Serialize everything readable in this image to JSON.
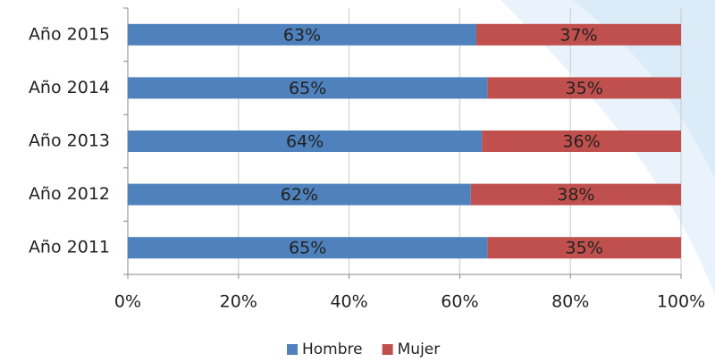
{
  "chart_data": {
    "type": "stacked-bar-horizontal",
    "categories": [
      "Año 2015",
      "Año 2014",
      "Año 2013",
      "Año 2012",
      "Año 2011"
    ],
    "series": [
      {
        "name": "Hombre",
        "color": "#4f81bd",
        "values": [
          63,
          65,
          64,
          62,
          65
        ],
        "value_labels": [
          "63%",
          "65%",
          "64%",
          "62%",
          "65%"
        ]
      },
      {
        "name": "Mujer",
        "color": "#c0504d",
        "values": [
          37,
          35,
          36,
          38,
          35
        ],
        "value_labels": [
          "37%",
          "35%",
          "36%",
          "38%",
          "35%"
        ]
      }
    ],
    "xlim": [
      0,
      100
    ],
    "xticks": [
      {
        "value": 0,
        "label": "0%"
      },
      {
        "value": 20,
        "label": "20%"
      },
      {
        "value": 40,
        "label": "40%"
      },
      {
        "value": 60,
        "label": "60%"
      },
      {
        "value": 80,
        "label": "80%"
      },
      {
        "value": 100,
        "label": "100%"
      }
    ],
    "grid": true,
    "legend": "bottom"
  }
}
